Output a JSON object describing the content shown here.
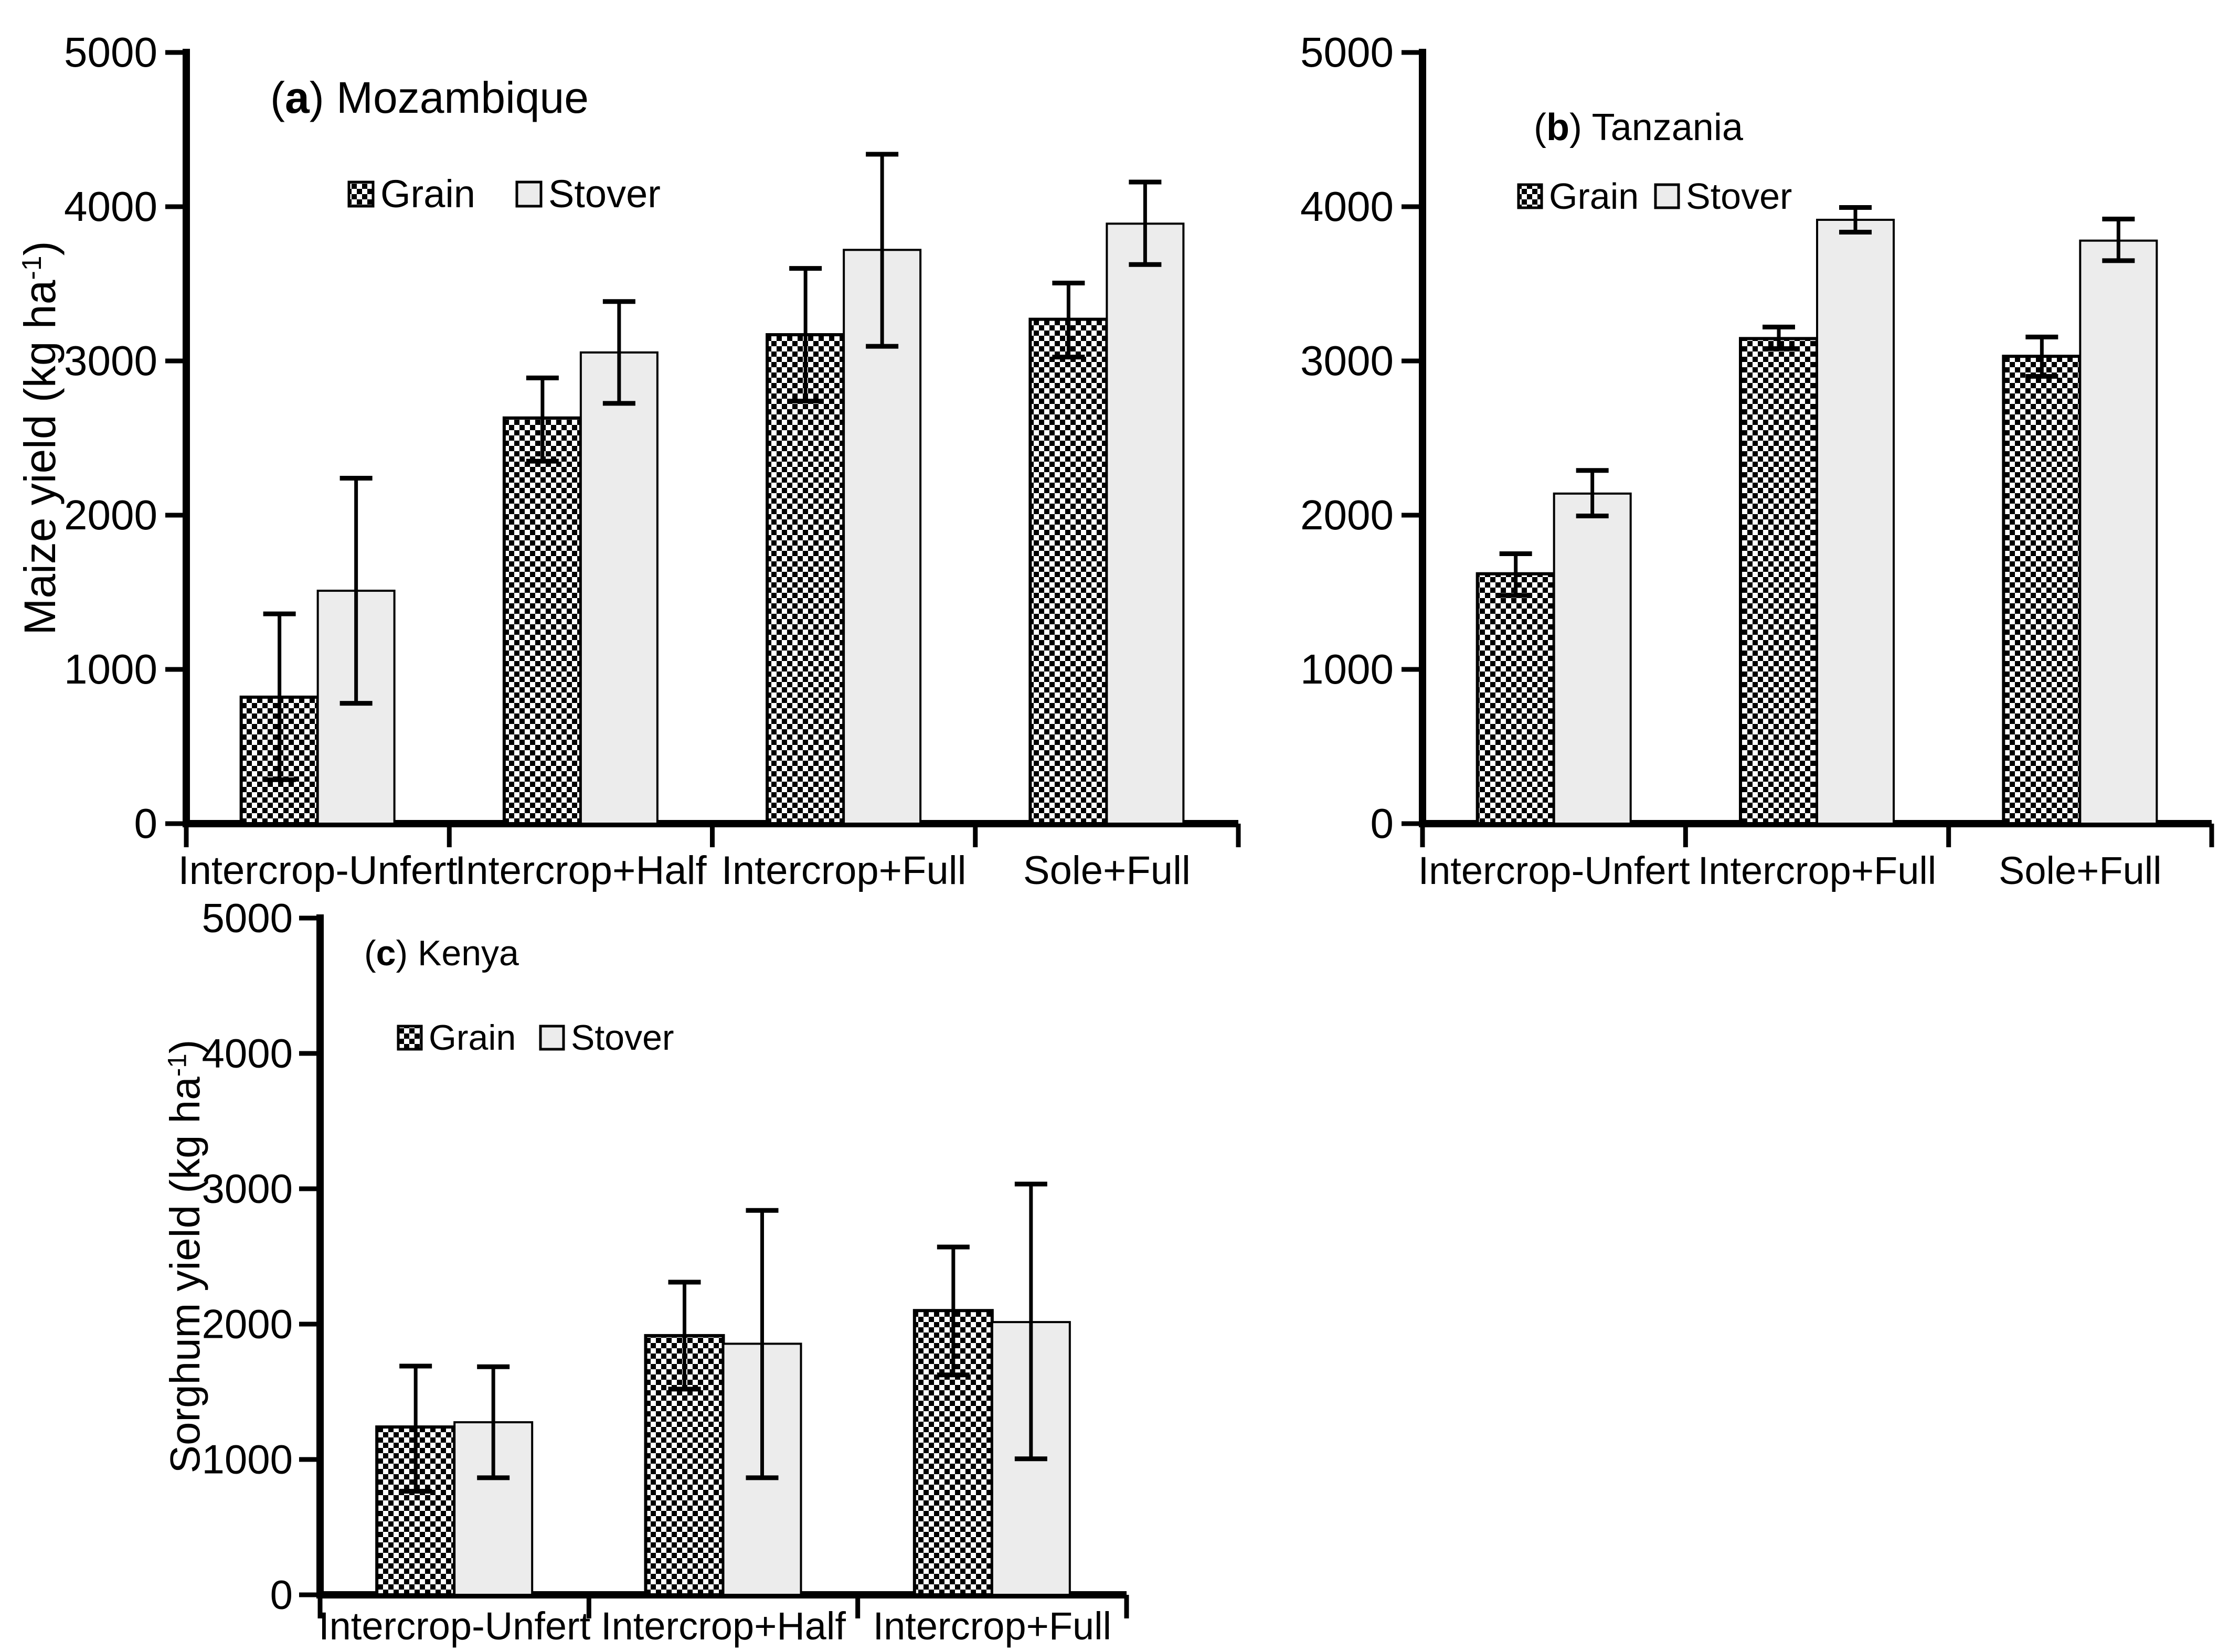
{
  "figure": {
    "background": "#ffffff",
    "axis_color": "#000000",
    "grain_pattern_colors": [
      "#000000",
      "#ffffff"
    ],
    "stover_fill": "#ececec",
    "bar_border_color": "#000000",
    "error_bar_color": "#000000"
  },
  "chart_data": [
    {
      "type": "bar",
      "panel_letter": "a",
      "title": "Mozambique",
      "ylabel": {
        "main": "Maize yield (kg ha",
        "sup": "-1",
        "suffix": ")"
      },
      "xlabel": "",
      "categories": [
        "Intercrop-Unfert",
        "Intercrop+Half",
        "Intercrop+Full",
        "Sole+Full"
      ],
      "series": [
        {
          "name": "Grain",
          "values": [
            820,
            2630,
            3170,
            3270
          ],
          "err_lower": [
            285,
            2350,
            2740,
            3025
          ],
          "err_upper": [
            1360,
            2890,
            3600,
            3505
          ]
        },
        {
          "name": "Stover",
          "values": [
            1510,
            3055,
            3720,
            3890
          ],
          "err_lower": [
            780,
            2725,
            3095,
            3625
          ],
          "err_upper": [
            2240,
            3385,
            4340,
            4160
          ]
        }
      ],
      "ylim": [
        0,
        5000
      ],
      "ytick_step": 1000,
      "grid": false,
      "legend": [
        "Grain",
        "Stover"
      ],
      "legend_position": "top-inside"
    },
    {
      "type": "bar",
      "panel_letter": "b",
      "title": "Tanzania",
      "ylabel": null,
      "xlabel": "",
      "categories": [
        "Intercrop-Unfert",
        "Intercrop+Full",
        "Sole+Full"
      ],
      "series": [
        {
          "name": "Grain",
          "values": [
            1620,
            3145,
            3030
          ],
          "err_lower": [
            1480,
            3080,
            2900
          ],
          "err_upper": [
            1750,
            3220,
            3155
          ]
        },
        {
          "name": "Stover",
          "values": [
            2140,
            3915,
            3780
          ],
          "err_lower": [
            1995,
            3835,
            3650
          ],
          "err_upper": [
            2290,
            3995,
            3920
          ]
        }
      ],
      "ylim": [
        0,
        5000
      ],
      "ytick_step": 1000,
      "grid": false,
      "legend": [
        "Grain",
        "Stover"
      ],
      "legend_position": "top-inside"
    },
    {
      "type": "bar",
      "panel_letter": "c",
      "title": "Kenya",
      "ylabel": {
        "main": "Sorghum yield (kg ha",
        "sup": "-1",
        "suffix": ")"
      },
      "xlabel": "",
      "categories": [
        "Intercrop-Unfert",
        "Intercrop+Half",
        "Intercrop+Full"
      ],
      "series": [
        {
          "name": "Grain",
          "values": [
            1240,
            1915,
            2100
          ],
          "err_lower": [
            765,
            1520,
            1625
          ],
          "err_upper": [
            1690,
            2310,
            2570
          ]
        },
        {
          "name": "Stover",
          "values": [
            1275,
            1855,
            2015
          ],
          "err_lower": [
            865,
            865,
            1005
          ],
          "err_upper": [
            1685,
            2840,
            3035
          ]
        }
      ],
      "ylim": [
        0,
        5000
      ],
      "ytick_step": 1000,
      "grid": false,
      "legend": [
        "Grain",
        "Stover"
      ],
      "legend_position": "top-inside"
    }
  ]
}
